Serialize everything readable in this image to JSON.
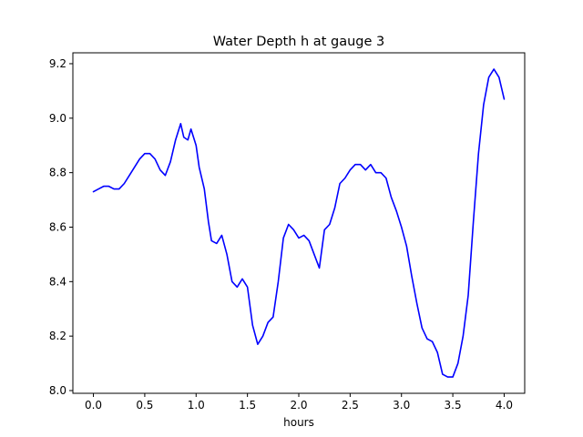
{
  "chart_data": {
    "type": "line",
    "title": "Water Depth h at gauge 3",
    "xlabel": "hours",
    "ylabel": "",
    "xlim": [
      -0.2,
      4.2
    ],
    "ylim": [
      7.99,
      9.24
    ],
    "xticks": [
      0.0,
      0.5,
      1.0,
      1.5,
      2.0,
      2.5,
      3.0,
      3.5,
      4.0
    ],
    "xtick_labels": [
      "0.0",
      "0.5",
      "1.0",
      "1.5",
      "2.0",
      "2.5",
      "3.0",
      "3.5",
      "4.0"
    ],
    "yticks": [
      8.0,
      8.2,
      8.4,
      8.6,
      8.8,
      9.0,
      9.2
    ],
    "ytick_labels": [
      "8.0",
      "8.2",
      "8.4",
      "8.6",
      "8.8",
      "9.0",
      "9.2"
    ],
    "grid": false,
    "legend": "none",
    "series": [
      {
        "color": "#0000ff",
        "x": [
          0.0,
          0.05,
          0.1,
          0.15,
          0.2,
          0.25,
          0.3,
          0.35,
          0.4,
          0.45,
          0.5,
          0.55,
          0.6,
          0.65,
          0.7,
          0.75,
          0.8,
          0.85,
          0.88,
          0.92,
          0.95,
          1.0,
          1.03,
          1.08,
          1.12,
          1.15,
          1.2,
          1.25,
          1.3,
          1.35,
          1.4,
          1.45,
          1.5,
          1.55,
          1.6,
          1.65,
          1.7,
          1.75,
          1.8,
          1.85,
          1.9,
          1.95,
          2.0,
          2.05,
          2.1,
          2.15,
          2.2,
          2.25,
          2.3,
          2.35,
          2.4,
          2.45,
          2.5,
          2.55,
          2.6,
          2.65,
          2.7,
          2.75,
          2.8,
          2.85,
          2.9,
          2.95,
          3.0,
          3.05,
          3.1,
          3.15,
          3.2,
          3.25,
          3.3,
          3.35,
          3.4,
          3.45,
          3.5,
          3.55,
          3.6,
          3.65,
          3.7,
          3.75,
          3.8,
          3.85,
          3.9,
          3.95,
          4.0
        ],
        "y": [
          8.73,
          8.74,
          8.75,
          8.75,
          8.74,
          8.74,
          8.76,
          8.79,
          8.82,
          8.85,
          8.87,
          8.87,
          8.85,
          8.81,
          8.79,
          8.84,
          8.92,
          8.98,
          8.93,
          8.92,
          8.96,
          8.9,
          8.82,
          8.74,
          8.62,
          8.55,
          8.54,
          8.57,
          8.5,
          8.4,
          8.38,
          8.41,
          8.38,
          8.24,
          8.17,
          8.2,
          8.25,
          8.27,
          8.4,
          8.56,
          8.61,
          8.59,
          8.56,
          8.57,
          8.55,
          8.5,
          8.45,
          8.59,
          8.61,
          8.67,
          8.76,
          8.78,
          8.81,
          8.83,
          8.83,
          8.81,
          8.83,
          8.8,
          8.8,
          8.78,
          8.71,
          8.66,
          8.6,
          8.53,
          8.42,
          8.32,
          8.23,
          8.19,
          8.18,
          8.14,
          8.06,
          8.05,
          8.05,
          8.1,
          8.2,
          8.35,
          8.62,
          8.87,
          9.05,
          9.15,
          9.18,
          9.15,
          9.07
        ]
      }
    ]
  }
}
